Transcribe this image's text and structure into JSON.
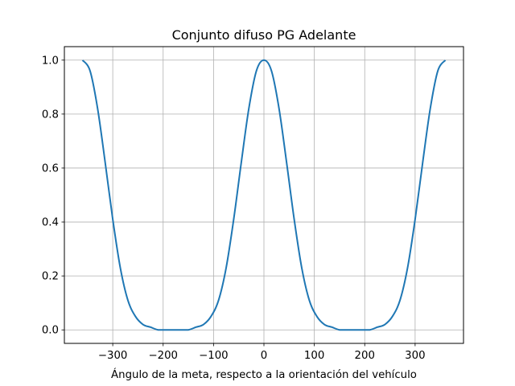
{
  "chart_data": {
    "type": "line",
    "title": "Conjunto difuso PG Adelante",
    "xlabel": "Ángulo de la meta, respecto a la orientación del vehículo",
    "ylabel": "",
    "xlim": [
      -396,
      396
    ],
    "ylim": [
      -0.05,
      1.05
    ],
    "x_ticks": [
      -300,
      -200,
      -100,
      0,
      100,
      200,
      300
    ],
    "x_tick_labels": [
      "−300",
      "−200",
      "−100",
      "0",
      "100",
      "200",
      "300"
    ],
    "y_ticks": [
      0.0,
      0.2,
      0.4,
      0.6,
      0.8,
      1.0
    ],
    "y_tick_labels": [
      "0.0",
      "0.2",
      "0.4",
      "0.6",
      "0.8",
      "1.0"
    ],
    "grid": true,
    "series": [
      {
        "color": "#1f77b4",
        "x": [
          -360,
          -345,
          -330,
          -315,
          -300,
          -285,
          -270,
          -255,
          -240,
          -225,
          -210,
          -195,
          -180,
          -165,
          -150,
          -135,
          -120,
          -105,
          -90,
          -75,
          -60,
          -45,
          -30,
          -15,
          0,
          15,
          30,
          45,
          60,
          75,
          90,
          105,
          120,
          135,
          150,
          165,
          180,
          195,
          210,
          225,
          240,
          255,
          270,
          285,
          300,
          315,
          330,
          345,
          360
        ],
        "y": [
          1.0,
          0.96,
          0.82,
          0.62,
          0.41,
          0.23,
          0.11,
          0.05,
          0.02,
          0.01,
          0.0,
          0.0,
          0.0,
          0.0,
          0.0,
          0.01,
          0.02,
          0.05,
          0.11,
          0.23,
          0.41,
          0.62,
          0.82,
          0.96,
          1.0,
          0.96,
          0.82,
          0.62,
          0.41,
          0.23,
          0.11,
          0.05,
          0.02,
          0.01,
          0.0,
          0.0,
          0.0,
          0.0,
          0.0,
          0.01,
          0.02,
          0.05,
          0.11,
          0.23,
          0.41,
          0.62,
          0.82,
          0.96,
          1.0
        ]
      }
    ]
  }
}
